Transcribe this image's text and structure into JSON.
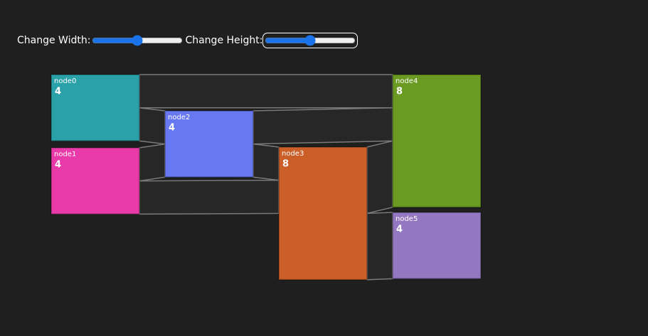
{
  "controls": [
    {
      "label": "Change Width:",
      "value": 50
    },
    {
      "label": "Change Height:",
      "value": 50
    }
  ],
  "chart_data": {
    "type": "sankey",
    "nodes": [
      {
        "name": "node0",
        "value": 4,
        "color": "#2aa0a8"
      },
      {
        "name": "node1",
        "value": 4,
        "color": "#e83aa8"
      },
      {
        "name": "node2",
        "value": 4,
        "color": "#6878f0"
      },
      {
        "name": "node3",
        "value": 8,
        "color": "#cc5f28"
      },
      {
        "name": "node4",
        "value": 8,
        "color": "#6a9a22"
      },
      {
        "name": "node5",
        "value": 4,
        "color": "#9377c0"
      }
    ],
    "links": [
      {
        "source": 0,
        "target": 4,
        "value": 2
      },
      {
        "source": 0,
        "target": 2,
        "value": 2
      },
      {
        "source": 1,
        "target": 2,
        "value": 2
      },
      {
        "source": 2,
        "target": 4,
        "value": 2
      },
      {
        "source": 2,
        "target": 3,
        "value": 2
      },
      {
        "source": 1,
        "target": 3,
        "value": 2
      },
      {
        "source": 3,
        "target": 4,
        "value": 4
      },
      {
        "source": 3,
        "target": 5,
        "value": 4
      }
    ]
  }
}
